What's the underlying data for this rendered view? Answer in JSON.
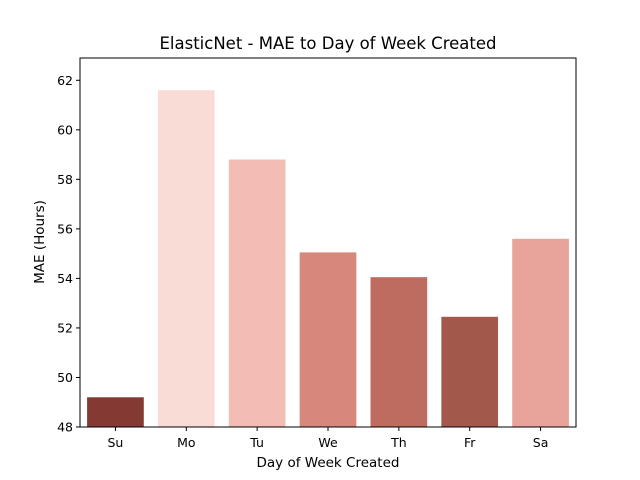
{
  "chart_data": {
    "type": "bar",
    "title": "ElasticNet - MAE to Day of Week Created",
    "xlabel": "Day of Week Created",
    "ylabel": "MAE (Hours)",
    "categories": [
      "Su",
      "Mo",
      "Tu",
      "We",
      "Th",
      "Fr",
      "Sa"
    ],
    "values": [
      49.2,
      61.6,
      58.8,
      55.05,
      54.05,
      52.45,
      55.6
    ],
    "colors": [
      "#843a33",
      "#f9dcd6",
      "#f3bdb6",
      "#d5887b",
      "#bf6c60",
      "#a2584b",
      "#e8a49a"
    ],
    "ylim": [
      48,
      62.9
    ],
    "yticks": [
      "48",
      "50",
      "52",
      "54",
      "56",
      "58",
      "60",
      "62"
    ],
    "grid": false
  }
}
